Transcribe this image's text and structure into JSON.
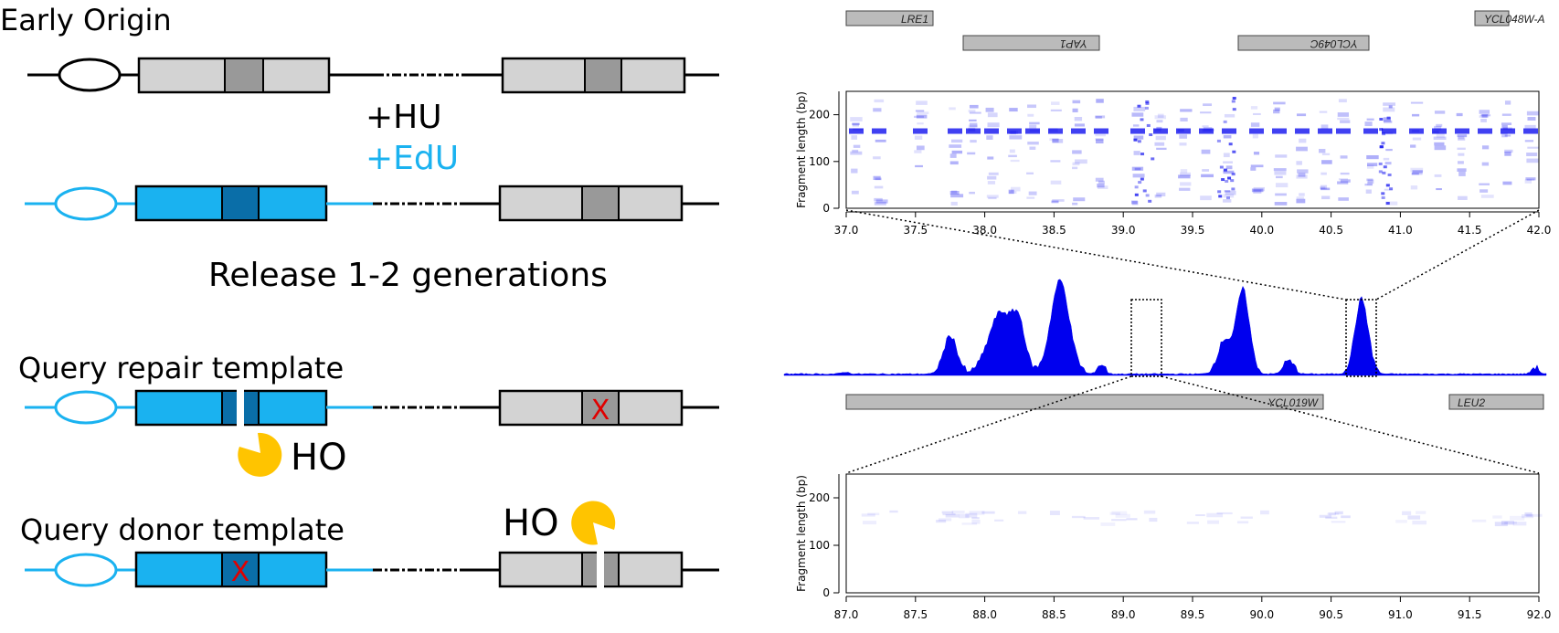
{
  "colors": {
    "cyan": "#1ab2f0",
    "cyan_dark": "#0a6ea8",
    "grey_box": "#d3d3d3",
    "grey_mid": "#999999",
    "cut_red": "#e00000",
    "pacman": "#ffc400",
    "signal_blue": "#0000ee",
    "gene_grey": "#bbbbbb"
  },
  "left_panel": {
    "early_origin": "Early Origin",
    "hu": "+HU",
    "edu": "+EdU",
    "release": "Release  1-2 generations",
    "query_repair": "Query repair template",
    "query_donor": "Query donor template",
    "ho_1": "HO",
    "ho_2": "HO",
    "cut_mark": "X"
  },
  "right_panel": {
    "genes_top": [
      "LRE1",
      "YAP1",
      "YCL049C",
      "YCL048W-A"
    ],
    "genes_mid": [
      "YCL019W",
      "LEU2"
    ],
    "chart_data": [
      {
        "type": "heatmap",
        "ylabel": "Fragment length (bp)",
        "y_ticks": [
          "0",
          "100",
          "200"
        ],
        "x_ticks": [
          "37.0",
          "37.5",
          "38.0",
          "38.5",
          "39.0",
          "39.5",
          "40.0",
          "40.5",
          "41.0",
          "41.5",
          "42.0"
        ],
        "xlim": [
          37.0,
          42.0
        ],
        "ylim": [
          0,
          250
        ]
      },
      {
        "type": "area",
        "color": "#0000ee"
      },
      {
        "type": "heatmap",
        "ylabel": "Fragment length (bp)",
        "y_ticks": [
          "0",
          "100",
          "200"
        ],
        "x_ticks": [
          "87.0",
          "87.5",
          "88.0",
          "88.5",
          "89.0",
          "89.5",
          "90.0",
          "90.5",
          "91.0",
          "91.5",
          "92.0"
        ],
        "xlim": [
          87.0,
          92.0
        ],
        "ylim": [
          0,
          250
        ]
      }
    ]
  }
}
